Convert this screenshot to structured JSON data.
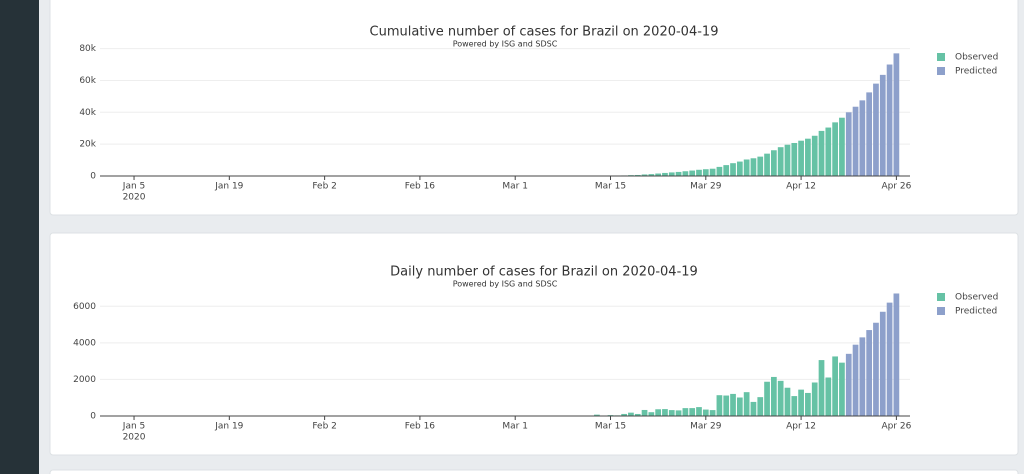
{
  "chart_data": [
    {
      "type": "bar",
      "title": "Cumulative number of cases for Brazil on 2020-04-19",
      "subtitle": "Powered by ISG and SDSC",
      "x": [
        "2020-02-26",
        "2020-02-27",
        "2020-02-28",
        "2020-02-29",
        "2020-03-01",
        "2020-03-02",
        "2020-03-03",
        "2020-03-04",
        "2020-03-05",
        "2020-03-06",
        "2020-03-07",
        "2020-03-08",
        "2020-03-09",
        "2020-03-10",
        "2020-03-11",
        "2020-03-12",
        "2020-03-13",
        "2020-03-14",
        "2020-03-15",
        "2020-03-16",
        "2020-03-17",
        "2020-03-18",
        "2020-03-19",
        "2020-03-20",
        "2020-03-21",
        "2020-03-22",
        "2020-03-23",
        "2020-03-24",
        "2020-03-25",
        "2020-03-26",
        "2020-03-27",
        "2020-03-28",
        "2020-03-29",
        "2020-03-30",
        "2020-03-31",
        "2020-04-01",
        "2020-04-02",
        "2020-04-03",
        "2020-04-04",
        "2020-04-05",
        "2020-04-06",
        "2020-04-07",
        "2020-04-08",
        "2020-04-09",
        "2020-04-10",
        "2020-04-11",
        "2020-04-12",
        "2020-04-13",
        "2020-04-14",
        "2020-04-15",
        "2020-04-16",
        "2020-04-17",
        "2020-04-18",
        "2020-04-19",
        "2020-04-20",
        "2020-04-21",
        "2020-04-22",
        "2020-04-23",
        "2020-04-24",
        "2020-04-25",
        "2020-04-26"
      ],
      "series": [
        {
          "name": "Observed",
          "color": "#66c2a5",
          "values": [
            1,
            1,
            1,
            2,
            2,
            2,
            2,
            4,
            8,
            13,
            19,
            25,
            25,
            34,
            52,
            77,
            151,
            151,
            200,
            234,
            346,
            529,
            640,
            970,
            1178,
            1546,
            1924,
            2247,
            2554,
            2985,
            3417,
            3904,
            4256,
            4579,
            5717,
            6836,
            8044,
            9056,
            10360,
            11130,
            12161,
            14034,
            16170,
            18092,
            19638,
            20727,
            22169,
            23430,
            25262,
            28320,
            30425,
            33682,
            36599,
            null,
            null,
            null,
            null,
            null,
            null,
            null,
            null
          ]
        },
        {
          "name": "Predicted",
          "color": "#8da0cb",
          "values": [
            null,
            null,
            null,
            null,
            null,
            null,
            null,
            null,
            null,
            null,
            null,
            null,
            null,
            null,
            null,
            null,
            null,
            null,
            null,
            null,
            null,
            null,
            null,
            null,
            null,
            null,
            null,
            null,
            null,
            null,
            null,
            null,
            null,
            null,
            null,
            null,
            null,
            null,
            null,
            null,
            null,
            null,
            null,
            null,
            null,
            null,
            null,
            null,
            null,
            null,
            null,
            null,
            null,
            40000,
            43500,
            47500,
            52500,
            58000,
            63500,
            70000,
            77000
          ]
        }
      ],
      "xlim": [
        "2019-12-31",
        "2020-04-28"
      ],
      "xticks": [
        {
          "value": "2020-01-05",
          "label": "Jan 5"
        },
        {
          "value": "2020-01-19",
          "label": "Jan 19"
        },
        {
          "value": "2020-02-02",
          "label": "Feb 2"
        },
        {
          "value": "2020-02-16",
          "label": "Feb 16"
        },
        {
          "value": "2020-03-01",
          "label": "Mar 1"
        },
        {
          "value": "2020-03-15",
          "label": "Mar 15"
        },
        {
          "value": "2020-03-29",
          "label": "Mar 29"
        },
        {
          "value": "2020-04-12",
          "label": "Apr 12"
        },
        {
          "value": "2020-04-26",
          "label": "Apr 26"
        }
      ],
      "xtick_year": "2020",
      "ylim": [
        0,
        81000
      ],
      "yticks": [
        0,
        {
          "value": 20000,
          "label": "20k"
        },
        {
          "value": 40000,
          "label": "40k"
        },
        {
          "value": 60000,
          "label": "60k"
        },
        {
          "value": 80000,
          "label": "80k"
        }
      ],
      "grid": true,
      "legend": "top-right"
    },
    {
      "type": "bar",
      "title": "Daily number of cases for Brazil on 2020-04-19",
      "subtitle": "Powered by ISG and SDSC",
      "x": [
        "2020-02-26",
        "2020-02-27",
        "2020-02-28",
        "2020-02-29",
        "2020-03-01",
        "2020-03-02",
        "2020-03-03",
        "2020-03-04",
        "2020-03-05",
        "2020-03-06",
        "2020-03-07",
        "2020-03-08",
        "2020-03-09",
        "2020-03-10",
        "2020-03-11",
        "2020-03-12",
        "2020-03-13",
        "2020-03-14",
        "2020-03-15",
        "2020-03-16",
        "2020-03-17",
        "2020-03-18",
        "2020-03-19",
        "2020-03-20",
        "2020-03-21",
        "2020-03-22",
        "2020-03-23",
        "2020-03-24",
        "2020-03-25",
        "2020-03-26",
        "2020-03-27",
        "2020-03-28",
        "2020-03-29",
        "2020-03-30",
        "2020-03-31",
        "2020-04-01",
        "2020-04-02",
        "2020-04-03",
        "2020-04-04",
        "2020-04-05",
        "2020-04-06",
        "2020-04-07",
        "2020-04-08",
        "2020-04-09",
        "2020-04-10",
        "2020-04-11",
        "2020-04-12",
        "2020-04-13",
        "2020-04-14",
        "2020-04-15",
        "2020-04-16",
        "2020-04-17",
        "2020-04-18",
        "2020-04-19",
        "2020-04-20",
        "2020-04-21",
        "2020-04-22",
        "2020-04-23",
        "2020-04-24",
        "2020-04-25",
        "2020-04-26"
      ],
      "series": [
        {
          "name": "Observed",
          "color": "#66c2a5",
          "values": [
            1,
            0,
            0,
            1,
            0,
            0,
            0,
            2,
            4,
            5,
            6,
            6,
            0,
            9,
            18,
            25,
            74,
            0,
            49,
            34,
            112,
            183,
            111,
            330,
            208,
            368,
            378,
            323,
            307,
            431,
            432,
            487,
            352,
            323,
            1138,
            1119,
            1208,
            1012,
            1304,
            770,
            1031,
            1873,
            2136,
            1922,
            1546,
            1089,
            1442,
            1261,
            1832,
            3058,
            2105,
            3257,
            2917,
            null,
            null,
            null,
            null,
            null,
            null,
            null,
            null
          ]
        },
        {
          "name": "Predicted",
          "color": "#8da0cb",
          "values": [
            null,
            null,
            null,
            null,
            null,
            null,
            null,
            null,
            null,
            null,
            null,
            null,
            null,
            null,
            null,
            null,
            null,
            null,
            null,
            null,
            null,
            null,
            null,
            null,
            null,
            null,
            null,
            null,
            null,
            null,
            null,
            null,
            null,
            null,
            null,
            null,
            null,
            null,
            null,
            null,
            null,
            null,
            null,
            null,
            null,
            null,
            null,
            null,
            null,
            null,
            null,
            null,
            null,
            3400,
            3900,
            4300,
            4700,
            5100,
            5700,
            6200,
            6700
          ]
        }
      ],
      "xlim": [
        "2019-12-31",
        "2020-04-28"
      ],
      "xticks": [
        {
          "value": "2020-01-05",
          "label": "Jan 5"
        },
        {
          "value": "2020-01-19",
          "label": "Jan 19"
        },
        {
          "value": "2020-02-02",
          "label": "Feb 2"
        },
        {
          "value": "2020-02-16",
          "label": "Feb 16"
        },
        {
          "value": "2020-03-01",
          "label": "Mar 1"
        },
        {
          "value": "2020-03-15",
          "label": "Mar 15"
        },
        {
          "value": "2020-03-29",
          "label": "Mar 29"
        },
        {
          "value": "2020-04-12",
          "label": "Apr 12"
        },
        {
          "value": "2020-04-26",
          "label": "Apr 26"
        }
      ],
      "xtick_year": "2020",
      "ylim": [
        0,
        7000
      ],
      "yticks": [
        0,
        2000,
        4000,
        6000
      ],
      "grid": true,
      "legend": "top-right"
    }
  ]
}
